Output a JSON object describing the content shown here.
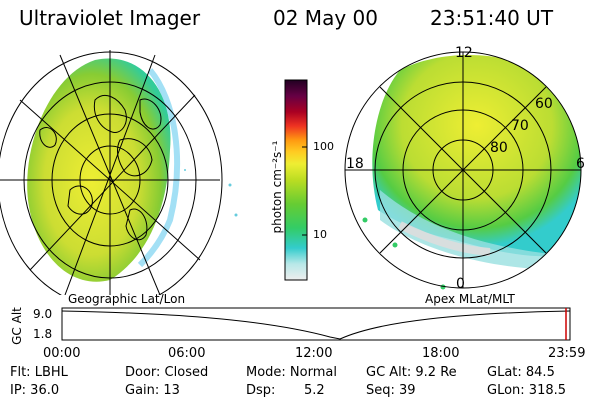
{
  "header": {
    "instrument": "Ultraviolet Imager",
    "date": "02 May 00",
    "time": "23:51:40 UT"
  },
  "left_map": {
    "label": "Geographic Lat/Lon"
  },
  "right_map": {
    "label": "Apex MLat/MLT",
    "mlt_labels": {
      "top": "12",
      "left": "18",
      "right": "6",
      "bottom": "0"
    },
    "lat_labels": [
      "60",
      "70",
      "80"
    ]
  },
  "colorbar": {
    "unit_label": "photon cm⁻²s⁻¹",
    "ticks": [
      "100",
      "10"
    ],
    "scale": "log",
    "colors": [
      "#eeeeee",
      "#b8e8e8",
      "#33cccc",
      "#33cc66",
      "#66cc33",
      "#bbdd22",
      "#eeee33",
      "#ffcc22",
      "#ff9911",
      "#ee3322",
      "#aa0022",
      "#660044",
      "#220022"
    ]
  },
  "altitude_plot": {
    "ylabel": "GC Alt",
    "y_ticks": [
      "9.0",
      "1.8"
    ],
    "x_ticks": [
      "00:00",
      "06:00",
      "12:00",
      "18:00",
      "23:59"
    ]
  },
  "info": {
    "filter": "Flt: LBHL",
    "door": "Door: Closed",
    "mode": "Mode: Normal",
    "gc_alt": "GC Alt: 9.2 Re",
    "glat": "GLat:  84.5",
    "ip": "IP: 36.0",
    "gain": "Gain: 13",
    "dsp_label": "Dsp:",
    "dsp_value": "5.2",
    "seq": "Seq: 39",
    "glon": "GLon: 318.5"
  }
}
